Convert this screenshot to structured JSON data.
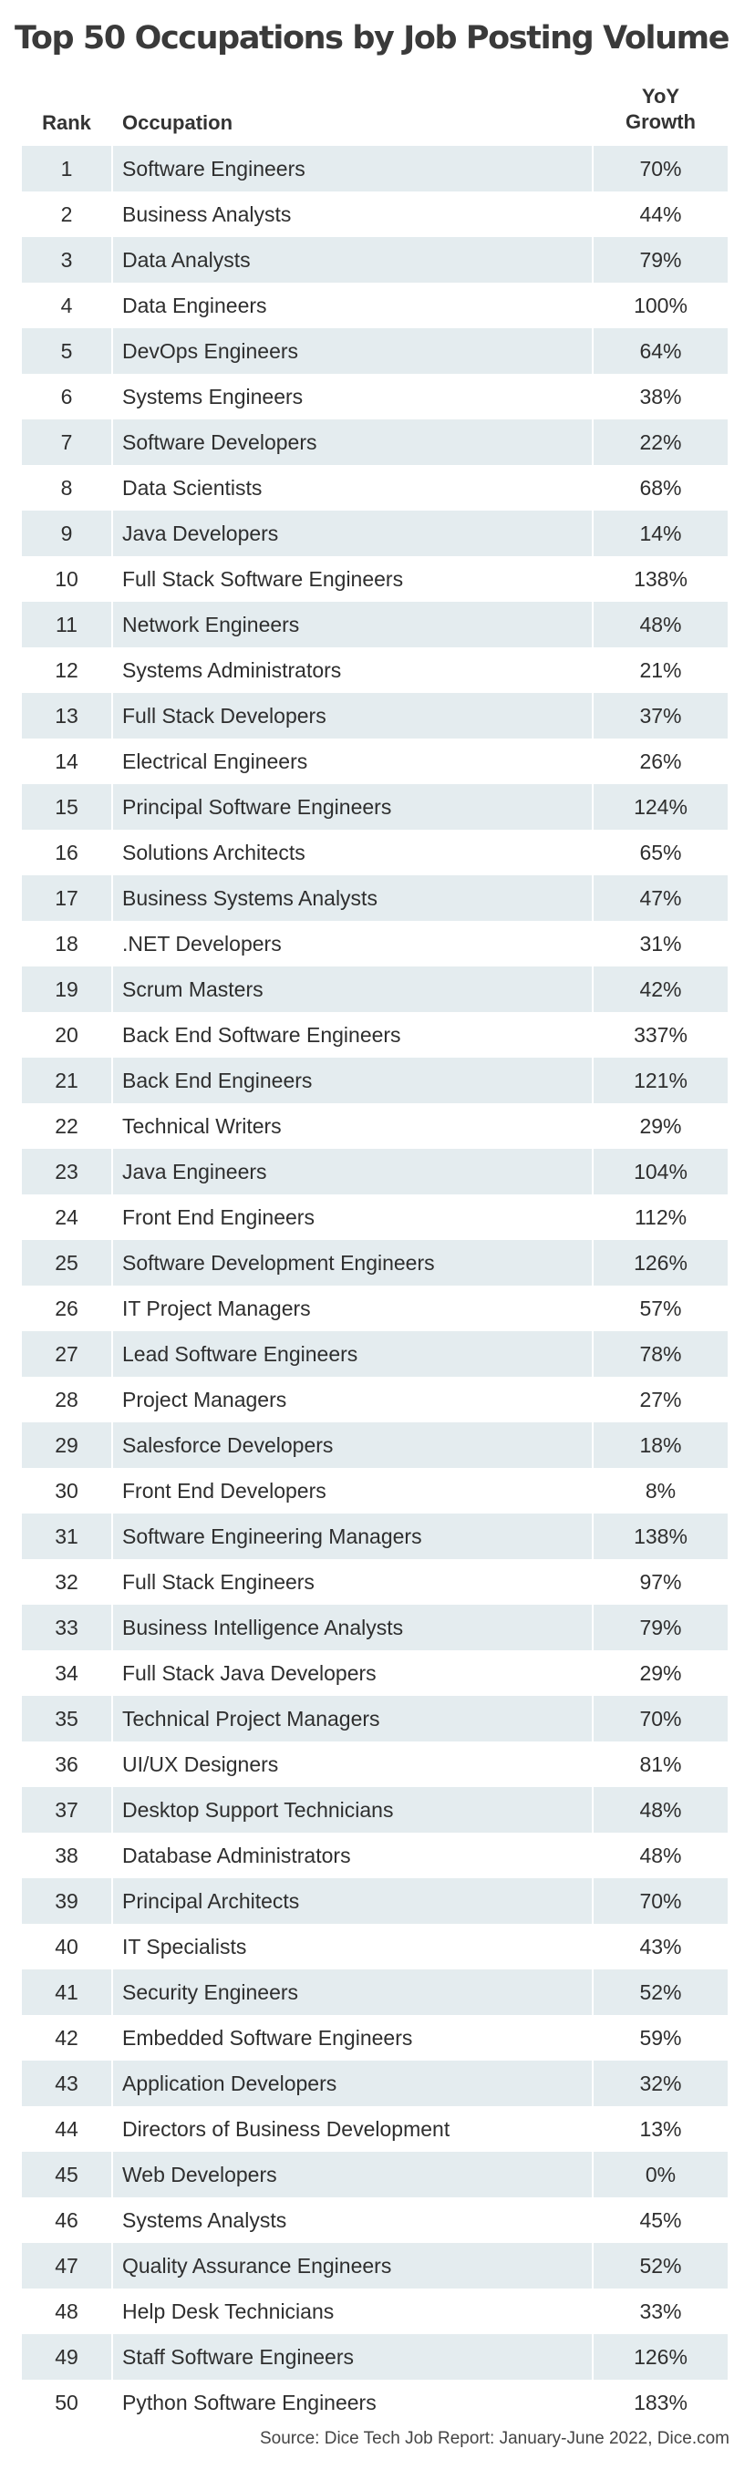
{
  "chart_data": {
    "type": "table",
    "title": "Top 50 Occupations by Job Posting Volume",
    "columns": {
      "rank": "Rank",
      "occupation": "Occupation",
      "growth_line1": "YoY",
      "growth_line2": "Growth"
    },
    "rows": [
      {
        "rank": "1",
        "occupation": "Software Engineers",
        "growth": "70%"
      },
      {
        "rank": "2",
        "occupation": "Business Analysts",
        "growth": "44%"
      },
      {
        "rank": "3",
        "occupation": "Data Analysts",
        "growth": "79%"
      },
      {
        "rank": "4",
        "occupation": "Data Engineers",
        "growth": "100%"
      },
      {
        "rank": "5",
        "occupation": "DevOps Engineers",
        "growth": "64%"
      },
      {
        "rank": "6",
        "occupation": "Systems Engineers",
        "growth": "38%"
      },
      {
        "rank": "7",
        "occupation": "Software Developers",
        "growth": "22%"
      },
      {
        "rank": "8",
        "occupation": "Data Scientists",
        "growth": "68%"
      },
      {
        "rank": "9",
        "occupation": "Java Developers",
        "growth": "14%"
      },
      {
        "rank": "10",
        "occupation": "Full Stack Software Engineers",
        "growth": "138%"
      },
      {
        "rank": "11",
        "occupation": "Network Engineers",
        "growth": "48%"
      },
      {
        "rank": "12",
        "occupation": "Systems Administrators",
        "growth": "21%"
      },
      {
        "rank": "13",
        "occupation": "Full Stack Developers",
        "growth": "37%"
      },
      {
        "rank": "14",
        "occupation": "Electrical Engineers",
        "growth": "26%"
      },
      {
        "rank": "15",
        "occupation": "Principal Software Engineers",
        "growth": "124%"
      },
      {
        "rank": "16",
        "occupation": "Solutions Architects",
        "growth": "65%"
      },
      {
        "rank": "17",
        "occupation": "Business Systems Analysts",
        "growth": "47%"
      },
      {
        "rank": "18",
        "occupation": ".NET Developers",
        "growth": "31%"
      },
      {
        "rank": "19",
        "occupation": "Scrum Masters",
        "growth": "42%"
      },
      {
        "rank": "20",
        "occupation": "Back End Software Engineers",
        "growth": "337%"
      },
      {
        "rank": "21",
        "occupation": "Back End Engineers",
        "growth": "121%"
      },
      {
        "rank": "22",
        "occupation": "Technical Writers",
        "growth": "29%"
      },
      {
        "rank": "23",
        "occupation": "Java Engineers",
        "growth": "104%"
      },
      {
        "rank": "24",
        "occupation": "Front End Engineers",
        "growth": "112%"
      },
      {
        "rank": "25",
        "occupation": "Software Development Engineers",
        "growth": "126%"
      },
      {
        "rank": "26",
        "occupation": "IT Project Managers",
        "growth": "57%"
      },
      {
        "rank": "27",
        "occupation": "Lead Software Engineers",
        "growth": "78%"
      },
      {
        "rank": "28",
        "occupation": "Project Managers",
        "growth": "27%"
      },
      {
        "rank": "29",
        "occupation": "Salesforce Developers",
        "growth": "18%"
      },
      {
        "rank": "30",
        "occupation": "Front End Developers",
        "growth": "8%"
      },
      {
        "rank": "31",
        "occupation": "Software Engineering Managers",
        "growth": "138%"
      },
      {
        "rank": "32",
        "occupation": "Full Stack Engineers",
        "growth": "97%"
      },
      {
        "rank": "33",
        "occupation": "Business Intelligence Analysts",
        "growth": "79%"
      },
      {
        "rank": "34",
        "occupation": "Full Stack Java Developers",
        "growth": "29%"
      },
      {
        "rank": "35",
        "occupation": "Technical Project Managers",
        "growth": "70%"
      },
      {
        "rank": "36",
        "occupation": "UI/UX Designers",
        "growth": "81%"
      },
      {
        "rank": "37",
        "occupation": "Desktop Support Technicians",
        "growth": "48%"
      },
      {
        "rank": "38",
        "occupation": "Database Administrators",
        "growth": "48%"
      },
      {
        "rank": "39",
        "occupation": "Principal Architects",
        "growth": "70%"
      },
      {
        "rank": "40",
        "occupation": "IT Specialists",
        "growth": "43%"
      },
      {
        "rank": "41",
        "occupation": "Security Engineers",
        "growth": "52%"
      },
      {
        "rank": "42",
        "occupation": "Embedded Software Engineers",
        "growth": "59%"
      },
      {
        "rank": "43",
        "occupation": "Application Developers",
        "growth": "32%"
      },
      {
        "rank": "44",
        "occupation": "Directors of Business Development",
        "growth": "13%"
      },
      {
        "rank": "45",
        "occupation": "Web Developers",
        "growth": "0%"
      },
      {
        "rank": "46",
        "occupation": "Systems Analysts",
        "growth": "45%"
      },
      {
        "rank": "47",
        "occupation": "Quality Assurance Engineers",
        "growth": "52%"
      },
      {
        "rank": "48",
        "occupation": "Help Desk Technicians",
        "growth": "33%"
      },
      {
        "rank": "49",
        "occupation": "Staff Software Engineers",
        "growth": "126%"
      },
      {
        "rank": "50",
        "occupation": "Python Software Engineers",
        "growth": "183%"
      }
    ],
    "source": "Source: Dice Tech Job Report: January-June 2022, Dice.com",
    "colors": {
      "stripe": "#e4ecef",
      "text": "#2e2e2e",
      "title": "#3a3a3a"
    }
  }
}
